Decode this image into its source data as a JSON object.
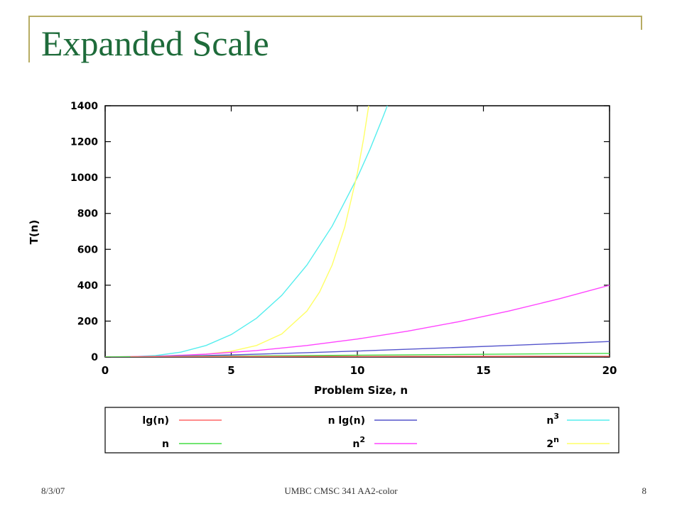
{
  "slide": {
    "title": "Expanded Scale",
    "footer_date": "8/3/07",
    "footer_center": "UMBC CMSC 341 AA2-color",
    "page_number": "8"
  },
  "colors": {
    "title": "#1e6b3a",
    "frame": "#b7ac63"
  },
  "chart_data": {
    "type": "line",
    "xlabel": "Problem Size, n",
    "ylabel": "T(n)",
    "xlim": [
      0,
      20
    ],
    "ylim": [
      0,
      1400
    ],
    "x_ticks": [
      "0",
      "5",
      "10",
      "15",
      "20"
    ],
    "y_ticks": [
      "0",
      "200",
      "400",
      "600",
      "800",
      "1000",
      "1200",
      "1400"
    ],
    "grid": false,
    "legend_position": "below",
    "series": [
      {
        "name": "lg(n)",
        "sup": "",
        "color": "#ff6666",
        "x": [
          1,
          2,
          4,
          6,
          8,
          10,
          12,
          14,
          16,
          18,
          20
        ],
        "y": [
          0,
          1,
          2,
          2.58,
          3,
          3.32,
          3.58,
          3.81,
          4,
          4.17,
          4.32
        ]
      },
      {
        "name": "n",
        "sup": "",
        "color": "#44dd44",
        "x": [
          0,
          5,
          10,
          15,
          20
        ],
        "y": [
          0,
          5,
          10,
          15,
          20
        ]
      },
      {
        "name": "n lg(n)",
        "sup": "",
        "color": "#5555cc",
        "x": [
          1,
          2,
          4,
          6,
          8,
          10,
          12,
          14,
          16,
          18,
          20
        ],
        "y": [
          0,
          2,
          8,
          15.5,
          24,
          33.2,
          43,
          53.3,
          64,
          75.1,
          86.4
        ]
      },
      {
        "name": "n",
        "sup": "2",
        "color": "#ff44ff",
        "x": [
          0,
          2,
          4,
          6,
          8,
          10,
          12,
          14,
          16,
          18,
          20
        ],
        "y": [
          0,
          4,
          16,
          36,
          64,
          100,
          144,
          196,
          256,
          324,
          400
        ]
      },
      {
        "name": "n",
        "sup": "3",
        "color": "#55eeee",
        "x": [
          0,
          1,
          2,
          3,
          4,
          5,
          6,
          7,
          8,
          9,
          10,
          10.5,
          11,
          11.19
        ],
        "y": [
          0,
          1,
          8,
          27,
          64,
          125,
          216,
          343,
          512,
          729,
          1000,
          1157.6,
          1331,
          1400
        ]
      },
      {
        "name": "2",
        "sup": "n",
        "color": "#ffff66",
        "x": [
          0,
          1,
          2,
          3,
          4,
          5,
          6,
          7,
          8,
          8.5,
          9,
          9.5,
          10,
          10.25,
          10.45
        ],
        "y": [
          1,
          2,
          4,
          8,
          16,
          32,
          64,
          128,
          256,
          362,
          512,
          724,
          1024,
          1218,
          1400
        ]
      }
    ]
  }
}
